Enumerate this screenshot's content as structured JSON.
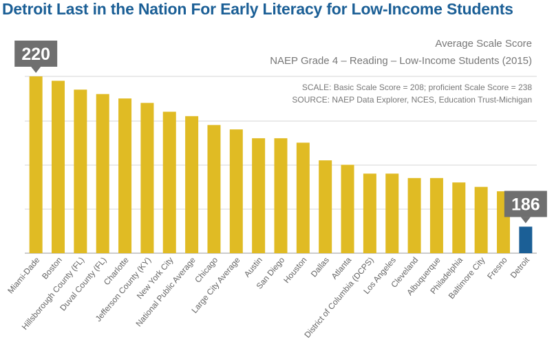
{
  "headline": "Detroit Last in the Nation For Early Literacy for Low-Income Students",
  "chart_data": {
    "type": "bar",
    "title": "Average Scale Score",
    "subtitle": "NAEP Grade 4 – Reading – Low-Income Students (2015)",
    "notes": [
      "SCALE: Basic Scale Score = 208; proficient Scale Score = 238",
      "SOURCE: NAEP Data Explorer, NCES, Education Trust-Michigan"
    ],
    "xlabel": "",
    "ylabel": "",
    "ylim": [
      180,
      222
    ],
    "grid": true,
    "categories": [
      "Miami-Dade",
      "Boston",
      "Hillsborough County (FL)",
      "Duval County (FL)",
      "Charlotte",
      "Jefferson County (KY)",
      "New York City",
      "National Public Average",
      "Chicago",
      "Large City Average",
      "Austin",
      "San Diego",
      "Houston",
      "Dallas",
      "Atlanta",
      "District of Columbia (DCPS)",
      "Los Angeles",
      "Cleveland",
      "Albuquerque",
      "Philadelphia",
      "Baltimore City",
      "Fresno",
      "Detroit"
    ],
    "values": [
      220,
      219,
      217,
      216,
      215,
      214,
      212,
      211,
      209,
      208,
      206,
      206,
      205,
      201,
      200,
      198,
      198,
      197,
      197,
      196,
      195,
      194,
      186
    ],
    "callouts": [
      {
        "category": "Miami-Dade",
        "label": "220"
      },
      {
        "category": "Detroit",
        "label": "186"
      }
    ],
    "colors": {
      "bar": "#e0bb24",
      "highlight": "#1b5f96",
      "callout": "#6f6f6f",
      "title": "#1b5f96"
    }
  }
}
